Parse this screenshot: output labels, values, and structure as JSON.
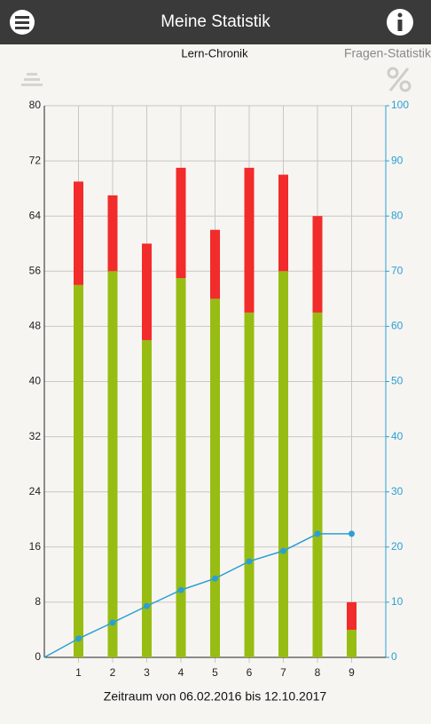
{
  "header": {
    "title": "Meine Statistik"
  },
  "tabs": [
    {
      "label": "Lern-Chronik",
      "active": true
    },
    {
      "label": "Fragen-Statistik",
      "active": false
    }
  ],
  "chart_data": {
    "type": "bar",
    "stacked": true,
    "x": [
      1,
      2,
      3,
      4,
      5,
      6,
      7,
      8,
      9
    ],
    "xlim": [
      0,
      10
    ],
    "xticks": [
      1,
      2,
      3,
      4,
      5,
      6,
      7,
      8,
      9
    ],
    "ylim": [
      0,
      80
    ],
    "yticks": [
      0,
      8,
      16,
      24,
      32,
      40,
      48,
      56,
      64,
      72,
      80
    ],
    "y2lim": [
      0,
      100
    ],
    "y2ticks": [
      0,
      10,
      20,
      30,
      40,
      50,
      60,
      70,
      80,
      90,
      100
    ],
    "grid": true,
    "xlabel": "Zeitraum von 06.02.2016 bis 12.10.2017",
    "series": [
      {
        "color": "#97bd12",
        "values": [
          54,
          56,
          46,
          55,
          52,
          50,
          56,
          50,
          4
        ]
      },
      {
        "color": "#f22b2b",
        "values": [
          15,
          11,
          14,
          16,
          10,
          21,
          14,
          14,
          4
        ]
      },
      {
        "type": "line",
        "axis": "y2",
        "color": "#2a9fd6",
        "x": [
          0,
          1,
          2,
          3,
          4,
          5,
          6,
          7,
          8,
          9
        ],
        "values": [
          0,
          3.4,
          6.3,
          9.3,
          12.2,
          14.3,
          17.4,
          19.3,
          22.4,
          22.4
        ]
      }
    ]
  }
}
